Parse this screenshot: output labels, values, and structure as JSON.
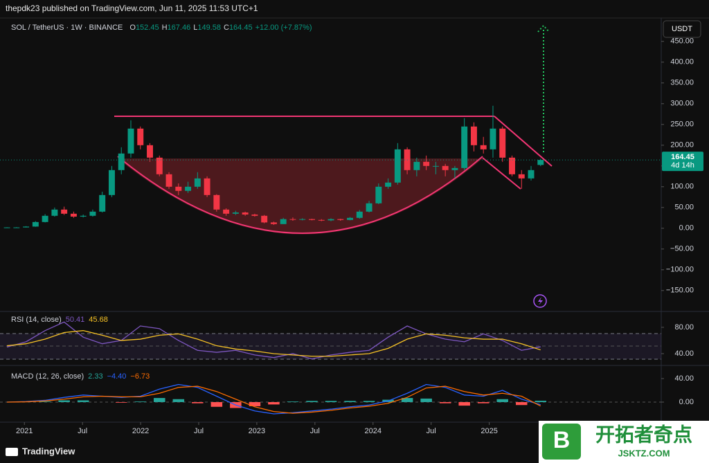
{
  "header": {
    "publisher": "thepdk23 published on TradingView.com, Jun 11, 2025 11:53 UTC+1"
  },
  "currency_button": "USDT",
  "footer_logo": "TradingView",
  "watermark": {
    "title": "开拓者奇点",
    "url": "JSKTZ.COM"
  },
  "chart_data": [
    {
      "type": "candlestick",
      "title": "SOL / TetherUS · 1W · BINANCE",
      "ohlc_labels": [
        "O",
        "H",
        "L",
        "C"
      ],
      "change_label": "+12.00 (+7.87%)",
      "countdown": "4d 14h",
      "x": [
        2020.85,
        2020.932,
        2021.014,
        2021.096,
        2021.178,
        2021.26,
        2021.342,
        2021.424,
        2021.506,
        2021.588,
        2021.67,
        2021.752,
        2021.834,
        2021.916,
        2021.998,
        2022.08,
        2022.162,
        2022.244,
        2022.326,
        2022.408,
        2022.49,
        2022.572,
        2022.654,
        2022.736,
        2022.818,
        2022.9,
        2022.982,
        2023.064,
        2023.146,
        2023.228,
        2023.31,
        2023.392,
        2023.474,
        2023.556,
        2023.638,
        2023.72,
        2023.802,
        2023.884,
        2023.966,
        2024.048,
        2024.13,
        2024.212,
        2024.294,
        2024.376,
        2024.458,
        2024.54,
        2024.622,
        2024.704,
        2024.786,
        2024.868,
        2024.95,
        2025.032,
        2025.114,
        2025.196,
        2025.278,
        2025.36,
        2025.442
      ],
      "open": [
        1.5,
        2,
        2,
        4,
        15,
        30,
        45,
        35,
        28,
        30,
        40,
        80,
        140,
        180,
        240,
        200,
        170,
        130,
        100,
        90,
        100,
        120,
        80,
        45,
        35,
        38,
        33,
        30,
        14,
        10,
        22,
        21,
        22,
        20,
        19,
        22,
        20,
        25,
        40,
        60,
        100,
        110,
        190,
        140,
        160,
        150,
        150,
        140,
        145,
        245,
        200,
        190,
        240,
        170,
        130,
        120,
        152.45
      ],
      "high": [
        2.5,
        2.8,
        5,
        17,
        34,
        50,
        52,
        40,
        33,
        45,
        88,
        150,
        195,
        260,
        245,
        205,
        175,
        135,
        108,
        112,
        135,
        125,
        82,
        48,
        42,
        40,
        35,
        32,
        16,
        25,
        26,
        24,
        23,
        22,
        24,
        23,
        27,
        44,
        66,
        108,
        120,
        205,
        195,
        170,
        175,
        160,
        155,
        150,
        265,
        255,
        220,
        295,
        245,
        175,
        140,
        150,
        167.46
      ],
      "low": [
        1.2,
        1.6,
        1.8,
        3.5,
        14,
        28,
        32,
        25,
        26,
        28,
        38,
        75,
        130,
        170,
        190,
        160,
        125,
        95,
        80,
        85,
        95,
        75,
        40,
        30,
        32,
        30,
        28,
        12,
        8,
        10,
        18,
        19,
        19,
        17,
        17,
        18,
        19,
        23,
        38,
        58,
        95,
        105,
        130,
        125,
        140,
        130,
        125,
        120,
        140,
        185,
        180,
        170,
        160,
        125,
        95,
        115,
        149.58
      ],
      "close": [
        2,
        2,
        4,
        15,
        30,
        45,
        35,
        28,
        30,
        40,
        80,
        140,
        180,
        240,
        200,
        170,
        130,
        100,
        90,
        100,
        120,
        80,
        45,
        35,
        38,
        33,
        30,
        14,
        10,
        22,
        21,
        22,
        20,
        19,
        22,
        20,
        25,
        40,
        60,
        100,
        110,
        190,
        140,
        160,
        150,
        150,
        140,
        145,
        245,
        200,
        190,
        240,
        170,
        130,
        120,
        140,
        164.45
      ],
      "up_color": "#089981",
      "down_color": "#f23645",
      "xlim": [
        2020.79,
        2026.48
      ],
      "ylim": [
        -197,
        503
      ],
      "yticks": [
        {
          "value": -150,
          "label": "−150.00"
        },
        {
          "value": -100,
          "label": "−100.00"
        },
        {
          "value": -50,
          "label": "−50.00"
        },
        {
          "value": 0,
          "label": "0.00"
        },
        {
          "value": 50,
          "label": "50.00"
        },
        {
          "value": 100,
          "label": "100.00"
        },
        {
          "value": 150,
          "label": "150.00"
        },
        {
          "value": 200,
          "label": "200.00"
        },
        {
          "value": 250,
          "label": "250.00"
        },
        {
          "value": 300,
          "label": "300.00"
        },
        {
          "value": 350,
          "label": "350.00"
        },
        {
          "value": 400,
          "label": "400.00"
        },
        {
          "value": 450,
          "label": "450.00"
        }
      ],
      "last_price_line": true
    },
    {
      "type": "line",
      "title": "RSI (14, close)",
      "x": [
        2020.85,
        2021.014,
        2021.178,
        2021.342,
        2021.506,
        2021.67,
        2021.834,
        2021.998,
        2022.162,
        2022.326,
        2022.49,
        2022.654,
        2022.818,
        2022.982,
        2023.146,
        2023.31,
        2023.474,
        2023.638,
        2023.802,
        2023.966,
        2024.13,
        2024.294,
        2024.458,
        2024.622,
        2024.786,
        2024.95,
        2025.114,
        2025.278,
        2025.442
      ],
      "series": [
        {
          "color": "#7e57c2",
          "values": [
            50,
            58,
            75,
            88,
            65,
            55,
            60,
            82,
            78,
            60,
            45,
            42,
            45,
            38,
            34,
            40,
            32,
            38,
            42,
            45,
            65,
            82,
            70,
            62,
            58,
            70,
            60,
            45,
            50.41
          ]
        },
        {
          "color": "#f7c325",
          "values": [
            52,
            55,
            62,
            72,
            75,
            68,
            60,
            62,
            68,
            70,
            62,
            52,
            47,
            44,
            40,
            38,
            36,
            36,
            38,
            40,
            48,
            62,
            70,
            68,
            64,
            62,
            62,
            55,
            45.68
          ]
        }
      ],
      "xlim": [
        2020.79,
        2026.48
      ],
      "ylim": [
        28.4,
        102
      ],
      "yticks": [
        {
          "value": 40,
          "label": "40.00"
        },
        {
          "value": 80,
          "label": "80.00"
        }
      ]
    },
    {
      "type": "macd",
      "title": "MACD (12, 26, close)",
      "legend_labels": [
        "2.33",
        "−4.40",
        "−6.73"
      ],
      "x": [
        2020.85,
        2021.014,
        2021.178,
        2021.342,
        2021.506,
        2021.67,
        2021.834,
        2021.998,
        2022.162,
        2022.326,
        2022.49,
        2022.654,
        2022.818,
        2022.982,
        2023.146,
        2023.31,
        2023.474,
        2023.638,
        2023.802,
        2023.966,
        2024.13,
        2024.294,
        2024.458,
        2024.622,
        2024.786,
        2024.95,
        2025.114,
        2025.278,
        2025.442
      ],
      "histogram": {
        "up_color": "#26a69a",
        "down_color": "#ff5252",
        "values": [
          0,
          0.5,
          1,
          3,
          3,
          0,
          -1,
          1,
          7,
          5,
          -2,
          -8,
          -10,
          -7,
          -4,
          1,
          2,
          2,
          2,
          2,
          4,
          7,
          6,
          -2,
          -6,
          -2,
          5,
          -5,
          2.33
        ]
      },
      "series": [
        {
          "color": "#2962ff",
          "values": [
            0,
            1,
            3,
            8,
            12,
            10,
            8,
            10,
            22,
            30,
            25,
            10,
            -5,
            -15,
            -20,
            -18,
            -15,
            -12,
            -8,
            -5,
            2,
            15,
            30,
            25,
            12,
            10,
            20,
            5,
            -4.4
          ]
        },
        {
          "color": "#ff6d00",
          "values": [
            0,
            0.5,
            2,
            5,
            9,
            10,
            9,
            9,
            15,
            25,
            27,
            18,
            5,
            -8,
            -16,
            -19,
            -17,
            -14,
            -10,
            -7,
            -2,
            8,
            24,
            27,
            18,
            12,
            15,
            10,
            -6.73
          ]
        }
      ],
      "xlim": [
        2020.79,
        2026.48
      ],
      "ylim": [
        -29.4,
        60
      ],
      "yticks": [
        {
          "value": 0,
          "label": "0.00"
        },
        {
          "value": 40,
          "label": "40.00"
        }
      ],
      "xticks": [
        {
          "value": 2021,
          "label": "2021"
        },
        {
          "value": 2021.5,
          "label": "Jul"
        },
        {
          "value": 2022,
          "label": "2022"
        },
        {
          "value": 2022.5,
          "label": "Jul"
        },
        {
          "value": 2023,
          "label": "2023"
        },
        {
          "value": 2023.5,
          "label": "Jul"
        },
        {
          "value": 2024,
          "label": "2024"
        },
        {
          "value": 2024.5,
          "label": "Jul"
        },
        {
          "value": 2025,
          "label": "2025"
        }
      ]
    }
  ]
}
